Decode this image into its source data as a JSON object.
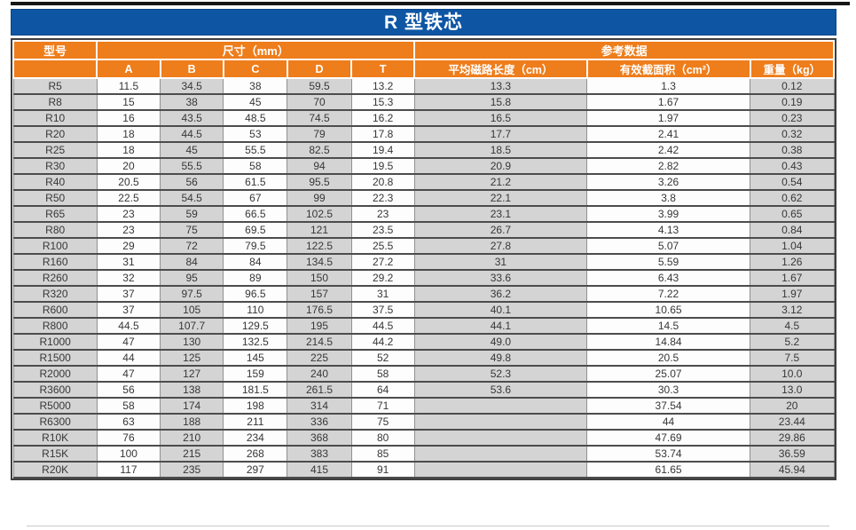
{
  "title": "R 型铁芯",
  "colors": {
    "title_bar_blue": "#0e56a4",
    "header_orange": "#ee7d1b",
    "stripe_gray": "#d4d4d4",
    "stripe_white": "#fdfdfd",
    "row_border": "#4c4c4c",
    "column_border": "#909090",
    "header_text": "#ffffff",
    "body_text": "#373737"
  },
  "table": {
    "header": {
      "model": "型号",
      "size_group": "尺寸（mm）",
      "ref_group": "参考数据",
      "cols": [
        "A",
        "B",
        "C",
        "D",
        "T"
      ],
      "ref_cols": [
        "平均磁路长度（cm）",
        "有效截面积（cm²）",
        "重量（kg）"
      ]
    },
    "rows": [
      [
        "R5",
        "11.5",
        "34.5",
        "38",
        "59.5",
        "13.2",
        "13.3",
        "1.3",
        "0.12"
      ],
      [
        "R8",
        "15",
        "38",
        "45",
        "70",
        "15.3",
        "15.8",
        "1.67",
        "0.19"
      ],
      [
        "R10",
        "16",
        "43.5",
        "48.5",
        "74.5",
        "16.2",
        "16.5",
        "1.97",
        "0.23"
      ],
      [
        "R20",
        "18",
        "44.5",
        "53",
        "79",
        "17.8",
        "17.7",
        "2.41",
        "0.32"
      ],
      [
        "R25",
        "18",
        "45",
        "55.5",
        "82.5",
        "19.4",
        "18.5",
        "2.42",
        "0.38"
      ],
      [
        "R30",
        "20",
        "55.5",
        "58",
        "94",
        "19.5",
        "20.9",
        "2.82",
        "0.43"
      ],
      [
        "R40",
        "20.5",
        "56",
        "61.5",
        "95.5",
        "20.8",
        "21.2",
        "3.26",
        "0.54"
      ],
      [
        "R50",
        "22.5",
        "54.5",
        "67",
        "99",
        "22.3",
        "22.1",
        "3.8",
        "0.62"
      ],
      [
        "R65",
        "23",
        "59",
        "66.5",
        "102.5",
        "23",
        "23.1",
        "3.99",
        "0.65"
      ],
      [
        "R80",
        "23",
        "75",
        "69.5",
        "121",
        "23.5",
        "26.7",
        "4.13",
        "0.84"
      ],
      [
        "R100",
        "29",
        "72",
        "79.5",
        "122.5",
        "25.5",
        "27.8",
        "5.07",
        "1.04"
      ],
      [
        "R160",
        "31",
        "84",
        "84",
        "134.5",
        "27.2",
        "31",
        "5.59",
        "1.26"
      ],
      [
        "R260",
        "32",
        "95",
        "89",
        "150",
        "29.2",
        "33.6",
        "6.43",
        "1.67"
      ],
      [
        "R320",
        "37",
        "97.5",
        "96.5",
        "157",
        "31",
        "36.2",
        "7.22",
        "1.97"
      ],
      [
        "R600",
        "37",
        "105",
        "110",
        "176.5",
        "37.5",
        "40.1",
        "10.65",
        "3.12"
      ],
      [
        "R800",
        "44.5",
        "107.7",
        "129.5",
        "195",
        "44.5",
        "44.1",
        "14.5",
        "4.5"
      ],
      [
        "R1000",
        "47",
        "130",
        "132.5",
        "214.5",
        "44.2",
        "49.0",
        "14.84",
        "5.2"
      ],
      [
        "R1500",
        "44",
        "125",
        "145",
        "225",
        "52",
        "49.8",
        "20.5",
        "7.5"
      ],
      [
        "R2000",
        "47",
        "127",
        "159",
        "240",
        "58",
        "52.3",
        "25.07",
        "10.0"
      ],
      [
        "R3600",
        "56",
        "138",
        "181.5",
        "261.5",
        "64",
        "53.6",
        "30.3",
        "13.0"
      ],
      [
        "R5000",
        "58",
        "174",
        "198",
        "314",
        "71",
        "",
        "37.54",
        "20"
      ],
      [
        "R6300",
        "63",
        "188",
        "211",
        "336",
        "75",
        "",
        "44",
        "23.44"
      ],
      [
        "R10K",
        "76",
        "210",
        "234",
        "368",
        "80",
        "",
        "47.69",
        "29.86"
      ],
      [
        "R15K",
        "100",
        "215",
        "268",
        "383",
        "85",
        "",
        "53.74",
        "36.59"
      ],
      [
        "R20K",
        "117",
        "235",
        "297",
        "415",
        "91",
        "",
        "61.65",
        "45.94"
      ]
    ]
  }
}
